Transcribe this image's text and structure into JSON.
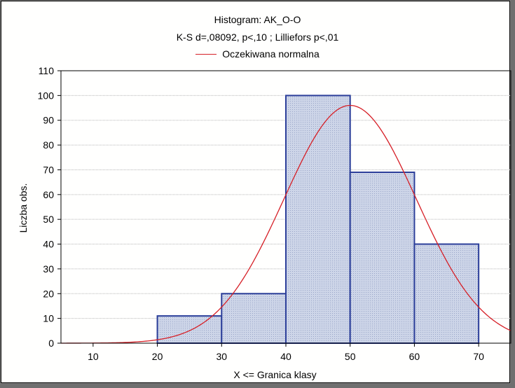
{
  "chart_data": {
    "type": "bar",
    "title": "Histogram: AK_O-O",
    "subtitle": "K-S d=,08092, p<,10 ; Lilliefors p<,01",
    "xlabel": "X <= Granica klasy",
    "ylabel": "Liczba obs.",
    "xlim": [
      5,
      75
    ],
    "ylim": [
      0,
      110
    ],
    "x_ticks": [
      "10",
      "20",
      "30",
      "40",
      "50",
      "60",
      "70"
    ],
    "y_ticks": [
      "0",
      "10",
      "20",
      "30",
      "40",
      "50",
      "60",
      "70",
      "80",
      "90",
      "100",
      "110"
    ],
    "bins": [
      {
        "from": 20,
        "to": 30,
        "value": 11
      },
      {
        "from": 30,
        "to": 40,
        "value": 20
      },
      {
        "from": 40,
        "to": 50,
        "value": 100
      },
      {
        "from": 50,
        "to": 60,
        "value": 69
      },
      {
        "from": 60,
        "to": 70,
        "value": 40
      }
    ],
    "series": [
      {
        "name": "Oczekiwana normalna",
        "type": "line",
        "mean": 50,
        "sd": 10.3,
        "peak": 96
      }
    ],
    "grid": true,
    "legend_position": "top-center",
    "colors": {
      "bar_fill": "#cdd5e8",
      "bar_edge": "#2c3f9a",
      "curve": "#d61f26",
      "grid": "#b8b8b8"
    }
  }
}
